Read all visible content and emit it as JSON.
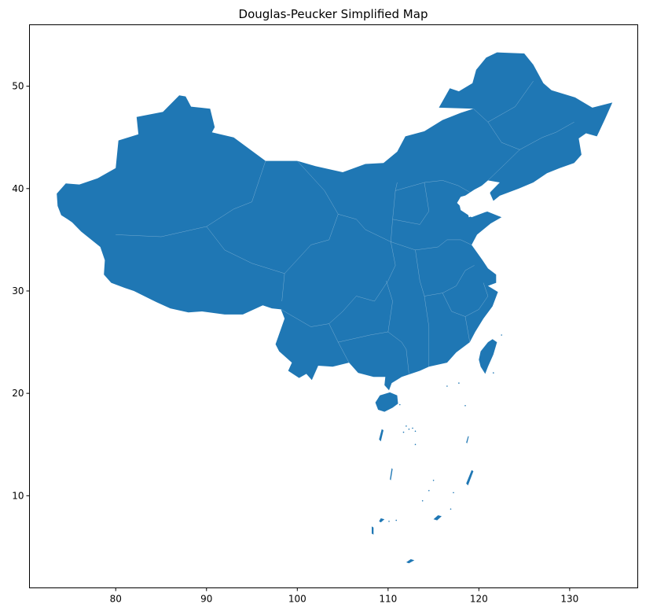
{
  "chart_data": {
    "type": "map",
    "title": "Douglas-Peucker Simplified Map",
    "xlabel": "",
    "ylabel": "",
    "x_ticks": [
      80,
      90,
      100,
      110,
      120,
      130
    ],
    "y_ticks": [
      10,
      20,
      30,
      40,
      50
    ],
    "xlim": [
      70.5,
      137.5
    ],
    "ylim": [
      1.0,
      56.0
    ],
    "grid": false,
    "fill_color": "#1f77b4",
    "mainland_outline": [
      [
        73.5,
        39.5
      ],
      [
        74.5,
        40.5
      ],
      [
        76.0,
        40.4
      ],
      [
        78.0,
        41.0
      ],
      [
        80.0,
        42.0
      ],
      [
        80.3,
        44.7
      ],
      [
        82.5,
        45.3
      ],
      [
        82.3,
        47.0
      ],
      [
        85.2,
        47.5
      ],
      [
        87.0,
        49.1
      ],
      [
        87.7,
        49.0
      ],
      [
        88.3,
        48.0
      ],
      [
        90.4,
        47.8
      ],
      [
        90.9,
        46.0
      ],
      [
        90.6,
        45.5
      ],
      [
        93.0,
        45.0
      ],
      [
        96.5,
        42.7
      ],
      [
        100.0,
        42.7
      ],
      [
        102.0,
        42.2
      ],
      [
        105.0,
        41.6
      ],
      [
        107.5,
        42.4
      ],
      [
        109.5,
        42.5
      ],
      [
        111.0,
        43.6
      ],
      [
        111.9,
        45.1
      ],
      [
        114.0,
        45.6
      ],
      [
        116.0,
        46.7
      ],
      [
        118.0,
        47.4
      ],
      [
        119.4,
        47.8
      ],
      [
        115.6,
        47.9
      ],
      [
        116.8,
        49.8
      ],
      [
        117.8,
        49.5
      ],
      [
        119.3,
        50.3
      ],
      [
        119.7,
        51.6
      ],
      [
        120.8,
        52.8
      ],
      [
        122.0,
        53.3
      ],
      [
        125.0,
        53.2
      ],
      [
        126.0,
        52.1
      ],
      [
        127.1,
        50.3
      ],
      [
        128.0,
        49.6
      ],
      [
        130.6,
        48.9
      ],
      [
        132.5,
        47.9
      ],
      [
        134.7,
        48.4
      ],
      [
        133.9,
        46.8
      ],
      [
        133.0,
        45.1
      ],
      [
        131.8,
        45.4
      ],
      [
        131.0,
        44.9
      ],
      [
        131.3,
        43.3
      ],
      [
        130.5,
        42.5
      ],
      [
        128.9,
        42.0
      ],
      [
        127.5,
        41.5
      ],
      [
        126.0,
        40.6
      ],
      [
        124.4,
        40.0
      ],
      [
        122.3,
        39.3
      ],
      [
        121.6,
        38.8
      ],
      [
        121.2,
        39.6
      ],
      [
        122.3,
        40.6
      ],
      [
        121.0,
        40.8
      ],
      [
        119.3,
        39.5
      ],
      [
        118.0,
        39.2
      ],
      [
        117.6,
        38.6
      ],
      [
        118.8,
        37.5
      ],
      [
        118.9,
        37.2
      ],
      [
        120.8,
        37.8
      ],
      [
        122.5,
        37.2
      ],
      [
        121.3,
        36.6
      ],
      [
        119.8,
        35.5
      ],
      [
        119.2,
        34.5
      ],
      [
        120.4,
        33.0
      ],
      [
        121.0,
        32.2
      ],
      [
        121.9,
        31.6
      ],
      [
        121.9,
        30.8
      ],
      [
        121.0,
        30.5
      ],
      [
        122.1,
        29.9
      ],
      [
        121.5,
        28.5
      ],
      [
        120.5,
        27.3
      ],
      [
        119.6,
        26.0
      ],
      [
        119.0,
        25.0
      ],
      [
        117.5,
        24.0
      ],
      [
        116.5,
        23.0
      ],
      [
        114.5,
        22.6
      ],
      [
        113.5,
        22.2
      ],
      [
        111.5,
        21.6
      ],
      [
        110.4,
        21.0
      ],
      [
        110.1,
        20.3
      ],
      [
        109.6,
        20.8
      ],
      [
        109.7,
        21.6
      ],
      [
        108.4,
        21.6
      ],
      [
        106.7,
        22.0
      ],
      [
        105.7,
        23.0
      ],
      [
        103.9,
        22.6
      ],
      [
        102.3,
        22.7
      ],
      [
        101.6,
        21.3
      ],
      [
        101.0,
        21.9
      ],
      [
        100.2,
        21.5
      ],
      [
        99.0,
        22.2
      ],
      [
        99.4,
        23.0
      ],
      [
        98.0,
        24.1
      ],
      [
        97.6,
        24.8
      ],
      [
        98.6,
        27.3
      ],
      [
        98.2,
        28.2
      ],
      [
        97.2,
        28.3
      ],
      [
        96.2,
        28.6
      ],
      [
        94.0,
        27.7
      ],
      [
        92.0,
        27.7
      ],
      [
        89.5,
        28.0
      ],
      [
        88.0,
        27.9
      ],
      [
        86.0,
        28.3
      ],
      [
        84.5,
        28.9
      ],
      [
        82.0,
        30.0
      ],
      [
        81.0,
        30.3
      ],
      [
        79.5,
        30.8
      ],
      [
        78.7,
        31.6
      ],
      [
        78.8,
        33.0
      ],
      [
        78.3,
        34.3
      ],
      [
        76.2,
        35.8
      ],
      [
        75.2,
        36.7
      ],
      [
        74.7,
        37.0
      ],
      [
        74.0,
        37.4
      ],
      [
        73.6,
        38.3
      ],
      [
        73.5,
        39.5
      ]
    ],
    "taiwan_outline": [
      [
        121.5,
        25.3
      ],
      [
        122.0,
        25.0
      ],
      [
        121.6,
        23.8
      ],
      [
        121.0,
        22.6
      ],
      [
        120.7,
        21.9
      ],
      [
        120.2,
        22.6
      ],
      [
        120.0,
        23.3
      ],
      [
        120.2,
        24.1
      ],
      [
        121.0,
        25.0
      ],
      [
        121.5,
        25.3
      ]
    ],
    "hainan_outline": [
      [
        110.2,
        20.1
      ],
      [
        111.0,
        19.8
      ],
      [
        111.1,
        19.0
      ],
      [
        110.5,
        18.6
      ],
      [
        109.6,
        18.2
      ],
      [
        108.9,
        18.4
      ],
      [
        108.6,
        19.1
      ],
      [
        109.1,
        19.8
      ],
      [
        110.2,
        20.1
      ]
    ],
    "bohai_gulf": [
      [
        118.3,
        39.2
      ],
      [
        119.5,
        39.9
      ],
      [
        121.0,
        40.6
      ],
      [
        121.3,
        39.8
      ],
      [
        121.0,
        38.8
      ],
      [
        121.5,
        37.9
      ],
      [
        120.7,
        37.7
      ],
      [
        119.2,
        37.2
      ],
      [
        118.0,
        37.9
      ],
      [
        117.8,
        38.7
      ],
      [
        118.3,
        39.2
      ]
    ],
    "internal_borders": [
      [
        [
          80.0,
          35.5
        ],
        [
          85.0,
          35.3
        ],
        [
          90.0,
          36.3
        ],
        [
          93.0,
          38.0
        ],
        [
          95.0,
          38.7
        ]
      ],
      [
        [
          90.0,
          36.3
        ],
        [
          92.0,
          34.0
        ],
        [
          95.0,
          32.7
        ],
        [
          98.6,
          31.7
        ],
        [
          98.3,
          29.0
        ]
      ],
      [
        [
          95.0,
          38.7
        ],
        [
          96.5,
          42.7
        ]
      ],
      [
        [
          98.6,
          31.7
        ],
        [
          101.5,
          34.5
        ],
        [
          103.5,
          35.0
        ],
        [
          104.5,
          37.5
        ],
        [
          103.0,
          39.8
        ],
        [
          100.0,
          42.7
        ]
      ],
      [
        [
          98.2,
          28.2
        ],
        [
          101.5,
          26.5
        ],
        [
          103.5,
          26.8
        ],
        [
          105.0,
          28.0
        ],
        [
          106.5,
          29.5
        ],
        [
          108.5,
          29.0
        ],
        [
          110.0,
          31.0
        ],
        [
          110.8,
          32.5
        ]
      ],
      [
        [
          103.5,
          26.8
        ],
        [
          104.5,
          25.0
        ],
        [
          105.7,
          23.0
        ]
      ],
      [
        [
          104.5,
          25.0
        ],
        [
          108.0,
          25.7
        ],
        [
          110.0,
          26.0
        ],
        [
          111.5,
          25.0
        ],
        [
          112.0,
          24.3
        ],
        [
          112.3,
          21.9
        ]
      ],
      [
        [
          110.0,
          26.0
        ],
        [
          110.5,
          29.0
        ],
        [
          109.8,
          31.0
        ]
      ],
      [
        [
          110.8,
          32.5
        ],
        [
          110.3,
          34.8
        ],
        [
          110.5,
          37.0
        ],
        [
          110.8,
          39.8
        ],
        [
          111.0,
          40.6
        ]
      ],
      [
        [
          104.5,
          37.5
        ],
        [
          106.5,
          37.0
        ],
        [
          107.5,
          36.0
        ],
        [
          110.3,
          34.8
        ]
      ],
      [
        [
          110.8,
          39.8
        ],
        [
          114.0,
          40.6
        ],
        [
          116.0,
          40.8
        ],
        [
          117.7,
          40.3
        ],
        [
          119.3,
          39.5
        ]
      ],
      [
        [
          110.5,
          37.0
        ],
        [
          113.5,
          36.5
        ],
        [
          114.5,
          37.8
        ],
        [
          114.0,
          40.6
        ]
      ],
      [
        [
          110.3,
          34.8
        ],
        [
          113.0,
          34.0
        ],
        [
          115.5,
          34.3
        ],
        [
          116.5,
          35.0
        ],
        [
          118.0,
          35.0
        ],
        [
          119.2,
          34.5
        ]
      ],
      [
        [
          113.0,
          34.0
        ],
        [
          113.5,
          31.0
        ],
        [
          114.0,
          29.5
        ],
        [
          116.0,
          29.8
        ],
        [
          117.5,
          30.5
        ],
        [
          118.5,
          32.0
        ],
        [
          119.5,
          32.5
        ]
      ],
      [
        [
          114.0,
          29.5
        ],
        [
          114.5,
          26.5
        ],
        [
          114.5,
          25.0
        ],
        [
          114.5,
          22.6
        ]
      ],
      [
        [
          116.0,
          29.8
        ],
        [
          117.0,
          28.0
        ],
        [
          118.5,
          27.5
        ],
        [
          119.0,
          25.0
        ]
      ],
      [
        [
          118.5,
          27.5
        ],
        [
          120.0,
          28.2
        ],
        [
          121.0,
          29.5
        ],
        [
          120.5,
          30.8
        ]
      ],
      [
        [
          121.0,
          40.8
        ],
        [
          123.0,
          42.5
        ],
        [
          124.5,
          43.8
        ],
        [
          127.0,
          45.0
        ],
        [
          128.5,
          45.5
        ],
        [
          130.5,
          46.5
        ]
      ],
      [
        [
          119.4,
          47.8
        ],
        [
          121.0,
          46.5
        ],
        [
          122.5,
          44.5
        ],
        [
          124.5,
          43.8
        ]
      ],
      [
        [
          121.0,
          46.5
        ],
        [
          124.0,
          48.0
        ],
        [
          126.0,
          50.5
        ]
      ]
    ],
    "islets": [
      [
        [
          108.2,
          7.0
        ],
        [
          108.4,
          6.9
        ],
        [
          108.4,
          6.2
        ],
        [
          108.2,
          6.3
        ],
        [
          108.2,
          7.0
        ]
      ],
      [
        [
          109.3,
          16.5
        ],
        [
          109.5,
          16.4
        ],
        [
          109.2,
          15.3
        ],
        [
          109.0,
          15.5
        ],
        [
          109.3,
          16.5
        ]
      ],
      [
        [
          110.4,
          12.7
        ],
        [
          110.5,
          12.6
        ],
        [
          110.3,
          11.5
        ],
        [
          110.2,
          11.6
        ],
        [
          110.4,
          12.7
        ]
      ],
      [
        [
          119.2,
          12.5
        ],
        [
          119.4,
          12.4
        ],
        [
          118.8,
          11.0
        ],
        [
          118.6,
          11.2
        ],
        [
          119.2,
          12.5
        ]
      ],
      [
        [
          115.5,
          8.1
        ],
        [
          115.9,
          8.0
        ],
        [
          115.4,
          7.6
        ],
        [
          115.0,
          7.7
        ],
        [
          115.5,
          8.1
        ]
      ],
      [
        [
          112.5,
          3.8
        ],
        [
          112.9,
          3.7
        ],
        [
          112.3,
          3.4
        ],
        [
          112.0,
          3.5
        ],
        [
          112.5,
          3.8
        ]
      ],
      [
        [
          109.2,
          7.8
        ],
        [
          109.6,
          7.7
        ],
        [
          109.2,
          7.4
        ],
        [
          109.0,
          7.5
        ],
        [
          109.2,
          7.8
        ]
      ],
      [
        [
          118.8,
          15.8
        ],
        [
          118.9,
          15.8
        ],
        [
          118.7,
          15.1
        ],
        [
          118.6,
          15.2
        ],
        [
          118.8,
          15.8
        ]
      ]
    ],
    "dots": [
      [
        112.0,
        16.8
      ],
      [
        112.3,
        16.5
      ],
      [
        112.7,
        16.6
      ],
      [
        111.7,
        16.2
      ],
      [
        113.0,
        16.3
      ],
      [
        116.5,
        20.7
      ],
      [
        117.2,
        10.3
      ],
      [
        114.5,
        10.5
      ],
      [
        115.0,
        11.5
      ],
      [
        113.8,
        9.5
      ],
      [
        116.9,
        8.7
      ],
      [
        110.1,
        7.5
      ],
      [
        110.9,
        7.6
      ],
      [
        117.8,
        21.0
      ],
      [
        121.6,
        22.0
      ],
      [
        122.5,
        25.7
      ],
      [
        113.0,
        15.0
      ],
      [
        118.5,
        18.8
      ],
      [
        111.3,
        18.9
      ]
    ]
  }
}
